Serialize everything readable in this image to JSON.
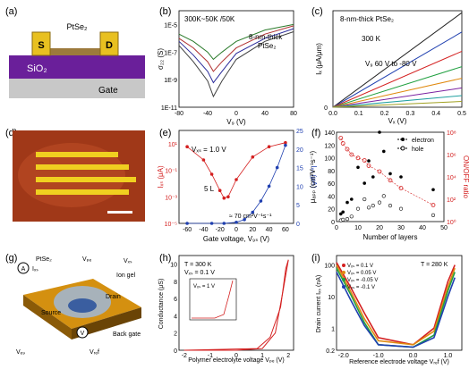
{
  "figure": {
    "panels": [
      {
        "id": "a",
        "label": "(a)",
        "texts": {
          "material": "PtSe₂",
          "source": "S",
          "drain": "D",
          "substrate": "SiO₂",
          "gate": "Gate"
        }
      },
      {
        "id": "b",
        "label": "(b)",
        "texts": {
          "condition": "300K~50K /50K",
          "sample": "8-nm-thick",
          "sample2": "PtSe₂",
          "ylabel": "σ₂₂ (S)",
          "xlabel": "V₉ (V)"
        }
      },
      {
        "id": "c",
        "label": "(c)",
        "texts": {
          "sample": "8-nm-thick PtSe₂",
          "temp": "300 K",
          "sweep": "V₉ 60 V to -80 V",
          "ylabel": "Iₓ (μA/μm)",
          "xlabel": "Vₓ (V)"
        }
      },
      {
        "id": "d",
        "label": "(d)",
        "texts": {}
      },
      {
        "id": "e",
        "label": "(e)",
        "texts": {
          "vds": "Vₓₛ = 1.0 V",
          "layers": "5 L",
          "mobility": "≈ 70 cm²V⁻¹s⁻¹",
          "ylabel_left": "Iₓₛ (μA)",
          "ylabel_right": "Iₓₛ (μA)",
          "xlabel": "Gate voltage, V₉ₛ (V)"
        }
      },
      {
        "id": "f",
        "label": "(f)",
        "texts": {
          "ylabel_left": "μₐₚₚ (cm²V⁻¹s⁻¹)",
          "ylabel_right": "ON/OFF ratio",
          "xlabel": "Number of layers",
          "legend_electron": "electron",
          "legend_hole": "hole"
        }
      },
      {
        "id": "g",
        "label": "(g)",
        "texts": {
          "material": "PtSe₂",
          "ion_gel": "Ion gel",
          "drain": "Drain",
          "source": "Source",
          "back_gate": "Back gate",
          "vpe": "Vₚₑ",
          "vds": "Vₓₛ",
          "vbg": "Vₑ₉",
          "vref": "Vᵣₑf",
          "ids": "Iₓₛ"
        }
      },
      {
        "id": "h",
        "label": "(h)",
        "texts": {
          "temp": "T = 300 K",
          "vds": "Vₓₛ = 0.1 V",
          "inset_vds": "Vₓₛ = 1 V",
          "ylabel": "Conductance (μS)",
          "xlabel": "Polymer electrolyte voltage Vₚₑ (V)",
          "inset_ylabel": "Conductance (nS)",
          "inset_xlabel": "Vₑ₉ (V)"
        }
      },
      {
        "id": "i",
        "label": "(i)",
        "texts": {
          "temp": "T = 280 K",
          "ylabel": "Drain current Iₓₛ (nA)",
          "xlabel": "Reference electrode voltage Vᵣₑf (V)",
          "leg1": "Vₓₛ = 0.1 V",
          "leg2": "Vₓₛ = 0.05 V",
          "leg3": "Vₓₛ = -0.05 V",
          "leg4": "Vₓₛ = -0.1 V"
        }
      }
    ],
    "ticks": {
      "b_x": [
        "-80",
        "-40",
        "0",
        "40",
        "80"
      ],
      "b_y": [
        "1E-5",
        "1E-7",
        "1E-9",
        "1E-11"
      ],
      "c_x": [
        "0.0",
        "0.1",
        "0.2",
        "0.3",
        "0.4",
        "0.5"
      ],
      "c_y": [
        "0"
      ],
      "e_x": [
        "-60",
        "-40",
        "-20",
        "0",
        "20",
        "40",
        "60"
      ],
      "e_yl": [
        "10¹",
        "10⁻¹",
        "10⁻³",
        "10⁻⁵"
      ],
      "e_yr": [
        "25",
        "20",
        "15",
        "10",
        "5",
        "0"
      ],
      "f_x": [
        "0",
        "10",
        "20",
        "30",
        "40",
        "50"
      ],
      "f_yl": [
        "140",
        "120",
        "100",
        "80",
        "60",
        "40",
        "20",
        "0"
      ],
      "f_yr": [
        "10⁸",
        "10⁶",
        "10⁴",
        "10²",
        "10⁰"
      ],
      "h_x": [
        "-2",
        "-1",
        "0",
        "1",
        "2"
      ],
      "h_y": [
        "10",
        "8",
        "6",
        "4",
        "2",
        "0"
      ],
      "h_inset_x": [
        "-60",
        "0",
        "60"
      ],
      "h_inset_y": [
        "30",
        "20",
        "10",
        "0"
      ],
      "i_x": [
        "-2.0",
        "-1.0",
        "0.0",
        "1.0"
      ],
      "i_y": [
        "100",
        "10",
        "1",
        "0.2"
      ]
    },
    "colors": {
      "red": "#d42020",
      "blue": "#2040b0",
      "gold": "#e8c020",
      "purple": "#6a1f9a",
      "gate_gray": "#c8c8c8",
      "chip_brown": "#a03818"
    }
  },
  "chart_data": [
    {
      "panel": "b",
      "type": "line",
      "x_unit": "V",
      "xlim": [
        -80,
        80
      ],
      "ylim": [
        1e-11,
        0.0001
      ],
      "yscale": "log",
      "series": [
        {
          "x": [
            -80,
            -60,
            -40,
            -32,
            -20,
            0,
            40,
            80
          ],
          "y": [
            2e-06,
            6e-07,
            1e-07,
            3e-08,
            1e-07,
            6e-07,
            4e-06,
            1e-05
          ]
        },
        {
          "x": [
            -80,
            -60,
            -40,
            -32,
            -20,
            0,
            40,
            80
          ],
          "y": [
            1e-06,
            2e-07,
            2e-08,
            4e-09,
            2e-08,
            2e-07,
            2e-06,
            8e-06
          ]
        },
        {
          "x": [
            -80,
            -60,
            -40,
            -32,
            -20,
            0,
            40,
            80
          ],
          "y": [
            6e-07,
            6e-08,
            4e-09,
            6e-10,
            4e-09,
            8e-08,
            1e-06,
            5e-06
          ]
        },
        {
          "x": [
            -80,
            -60,
            -40,
            -32,
            -20,
            0,
            40,
            80
          ],
          "y": [
            3e-07,
            2e-08,
            8e-10,
            6e-11,
            8e-10,
            3e-08,
            6e-07,
            3e-06
          ]
        }
      ]
    },
    {
      "panel": "c",
      "type": "line",
      "x_unit": "V",
      "xlim": [
        0,
        0.5
      ],
      "ylim": [
        0,
        1
      ],
      "series": [
        {
          "x": [
            0,
            0.5
          ],
          "y": [
            0,
            0.98
          ]
        },
        {
          "x": [
            0,
            0.5
          ],
          "y": [
            0,
            0.78
          ]
        },
        {
          "x": [
            0,
            0.5
          ],
          "y": [
            0,
            0.58
          ]
        },
        {
          "x": [
            0,
            0.5
          ],
          "y": [
            0,
            0.42
          ]
        },
        {
          "x": [
            0,
            0.5
          ],
          "y": [
            0,
            0.3
          ]
        },
        {
          "x": [
            0,
            0.5
          ],
          "y": [
            0,
            0.2
          ]
        },
        {
          "x": [
            0,
            0.5
          ],
          "y": [
            0,
            0.12
          ]
        },
        {
          "x": [
            0,
            0.5
          ],
          "y": [
            0,
            0.06
          ]
        }
      ]
    },
    {
      "panel": "e",
      "type": "line",
      "xlim": [
        -70,
        70
      ],
      "series": [
        {
          "axis": "left",
          "yscale": "log",
          "ylim": [
            1e-05,
            100.0
          ],
          "x": [
            -60,
            -40,
            -30,
            -20,
            -15,
            -10,
            0,
            20,
            40,
            60
          ],
          "y": [
            6,
            0.6,
            0.05,
            0.003,
            0.0008,
            0.001,
            0.02,
            1,
            6,
            12
          ]
        },
        {
          "axis": "right",
          "ylim": [
            0,
            25
          ],
          "x": [
            -60,
            -30,
            -15,
            0,
            10,
            20,
            30,
            40,
            50,
            60
          ],
          "y": [
            0,
            0,
            0,
            0.3,
            1,
            3,
            6,
            10,
            15,
            21
          ]
        }
      ]
    },
    {
      "panel": "f",
      "type": "scatter",
      "xlim": [
        0,
        50
      ],
      "legend": [
        "electron",
        "hole"
      ],
      "series": [
        {
          "axis": "left",
          "ylim": [
            0,
            140
          ],
          "x": [
            2,
            3,
            5,
            7,
            10,
            13,
            15,
            17,
            20,
            22,
            25,
            30,
            45
          ],
          "y": [
            12,
            15,
            30,
            35,
            85,
            60,
            95,
            70,
            140,
            110,
            75,
            70,
            50
          ]
        },
        {
          "axis": "left",
          "ylim": [
            0,
            140
          ],
          "x": [
            2,
            3,
            5,
            7,
            10,
            13,
            15,
            17,
            20,
            22,
            25,
            30,
            45
          ],
          "y": [
            2,
            3,
            4,
            8,
            20,
            35,
            22,
            25,
            30,
            40,
            25,
            20,
            10
          ]
        },
        {
          "axis": "right",
          "yscale": "log",
          "ylim": [
            1,
            100000000.0
          ],
          "x": [
            2,
            3,
            5,
            7,
            10,
            13,
            15,
            20,
            25,
            30,
            45
          ],
          "y": [
            30000000.0,
            10000000.0,
            3000000.0,
            1000000.0,
            500000.0,
            300000.0,
            100000.0,
            30000.0,
            5000.0,
            1000.0,
            30.0
          ]
        }
      ]
    },
    {
      "panel": "h",
      "type": "line",
      "xlim": [
        -2,
        2
      ],
      "ylim": [
        0,
        11
      ],
      "series": [
        {
          "x": [
            -2,
            0,
            1.0,
            1.5,
            1.8,
            2.0
          ],
          "y": [
            0,
            0,
            0.2,
            2,
            7,
            10.5
          ]
        },
        {
          "x": [
            2.0,
            1.9,
            1.7,
            1.3,
            0.8,
            -2
          ],
          "y": [
            10.5,
            9.5,
            5,
            1.5,
            0.2,
            0
          ]
        }
      ]
    },
    {
      "panel": "i",
      "type": "line",
      "xlim": [
        -2.2,
        1.4
      ],
      "ylim": [
        0.2,
        200
      ],
      "yscale": "log",
      "legend": [
        "Vₓₛ = 0.1 V",
        "Vₓₛ = 0.05 V",
        "Vₓₛ = -0.05 V",
        "Vₓₛ = -0.1 V"
      ],
      "series": [
        {
          "x": [
            -2.2,
            -1.8,
            -1.4,
            -1.0,
            0.0,
            0.6,
            1.0,
            1.2
          ],
          "y": [
            120,
            20,
            3,
            0.5,
            0.3,
            1,
            30,
            100
          ]
        },
        {
          "x": [
            -2.2,
            -1.8,
            -1.4,
            -1.0,
            0.0,
            0.6,
            1.0,
            1.2
          ],
          "y": [
            100,
            15,
            2,
            0.4,
            0.3,
            0.8,
            20,
            80
          ]
        },
        {
          "x": [
            -2.2,
            -1.8,
            -1.4,
            -1.0,
            0.0,
            0.6,
            1.0,
            1.2
          ],
          "y": [
            80,
            12,
            1.5,
            0.3,
            0.25,
            0.6,
            15,
            60
          ]
        },
        {
          "x": [
            -2.2,
            -1.8,
            -1.4,
            -1.0,
            0.0,
            0.6,
            1.0,
            1.2
          ],
          "y": [
            60,
            8,
            1.2,
            0.3,
            0.25,
            0.5,
            10,
            40
          ]
        }
      ]
    }
  ]
}
